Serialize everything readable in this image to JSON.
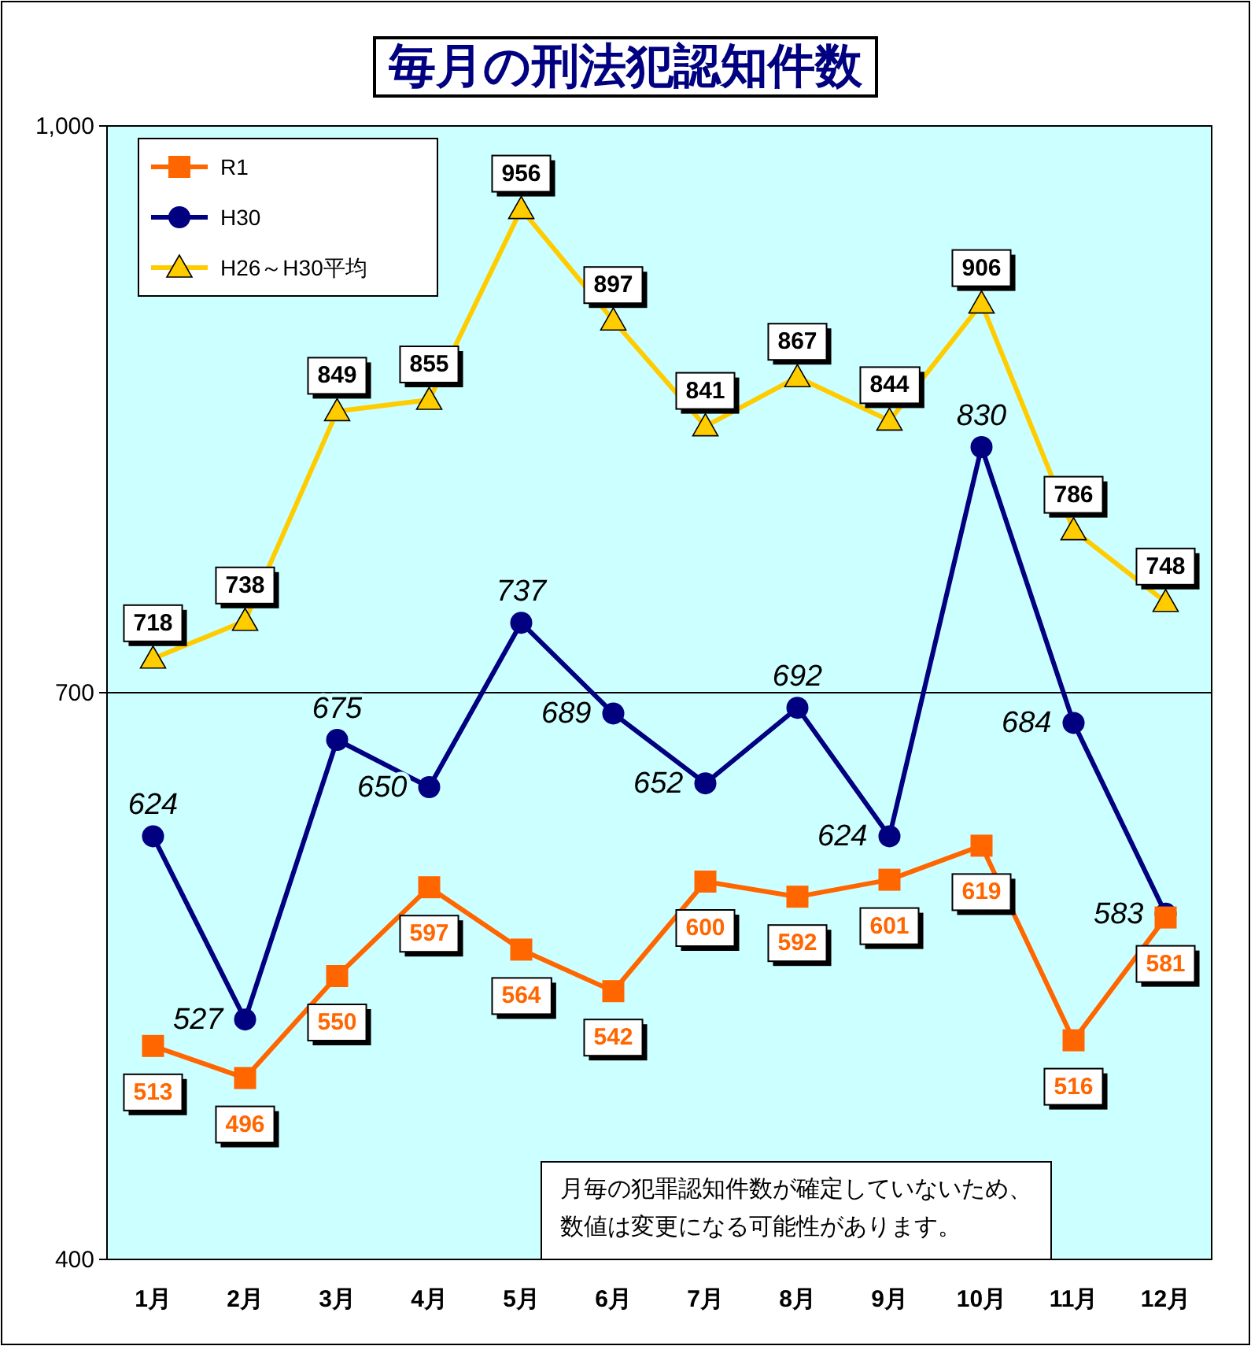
{
  "chart_data": {
    "type": "line",
    "title": "毎月の刑法犯認知件数",
    "categories": [
      "1月",
      "2月",
      "3月",
      "4月",
      "5月",
      "6月",
      "7月",
      "8月",
      "9月",
      "10月",
      "11月",
      "12月"
    ],
    "series": [
      {
        "name": "R1",
        "color": "#ff6600",
        "marker": "square",
        "values": [
          513,
          496,
          550,
          597,
          564,
          542,
          600,
          592,
          601,
          619,
          516,
          581
        ]
      },
      {
        "name": "H30",
        "color": "#000080",
        "marker": "circle",
        "values": [
          624,
          527,
          675,
          650,
          737,
          689,
          652,
          692,
          624,
          830,
          684,
          583
        ]
      },
      {
        "name": "H26～H30平均",
        "color": "#ffcc00",
        "marker": "triangle",
        "values": [
          718,
          738,
          849,
          855,
          956,
          897,
          841,
          867,
          844,
          906,
          786,
          748
        ]
      }
    ],
    "ylim": [
      400,
      1000
    ],
    "yticks": [
      400,
      700,
      {
        "value": 1000,
        "label": "1,000"
      }
    ],
    "grid": "y",
    "legend": "top left",
    "data_labels": true,
    "annotations": [
      "月毎の犯罪認知件数が確定していないため、",
      "数値は変更になる可能性があります。"
    ]
  }
}
